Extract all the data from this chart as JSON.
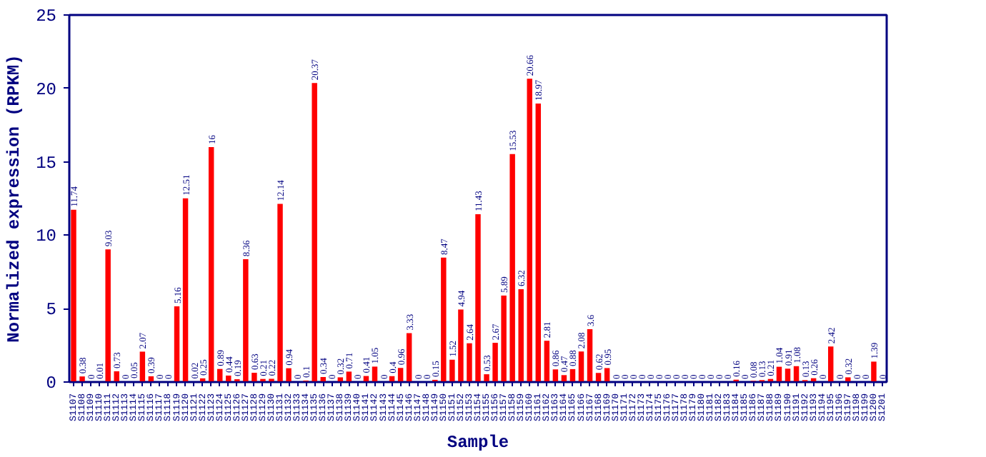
{
  "chart_data": {
    "type": "bar",
    "xlabel": "Sample",
    "ylabel": "Normalized expression (RPKM)",
    "categories": [
      "S1107",
      "S1108",
      "S1109",
      "S1110",
      "S1111",
      "S1112",
      "S1113",
      "S1114",
      "S1115",
      "S1116",
      "S1117",
      "S1118",
      "S1119",
      "S1120",
      "S1121",
      "S1122",
      "S1123",
      "S1124",
      "S1125",
      "S1126",
      "S1127",
      "S1128",
      "S1129",
      "S1130",
      "S1131",
      "S1132",
      "S1133",
      "S1134",
      "S1135",
      "S1136",
      "S1137",
      "S1138",
      "S1139",
      "S1140",
      "S1141",
      "S1142",
      "S1143",
      "S1144",
      "S1145",
      "S1146",
      "S1147",
      "S1148",
      "S1149",
      "S1150",
      "S1151",
      "S1152",
      "S1153",
      "S1154",
      "S1155",
      "S1156",
      "S1157",
      "S1158",
      "S1159",
      "S1160",
      "S1161",
      "S1162",
      "S1163",
      "S1164",
      "S1165",
      "S1166",
      "S1167",
      "S1168",
      "S1169",
      "S1170",
      "S1171",
      "S1172",
      "S1173",
      "S1174",
      "S1175",
      "S1176",
      "S1177",
      "S1178",
      "S1179",
      "S1180",
      "S1181",
      "S1182",
      "S1183",
      "S1184",
      "S1185",
      "S1186",
      "S1187",
      "S1188",
      "S1189",
      "S1190",
      "S1191",
      "S1192",
      "S1193",
      "S1194",
      "S1195",
      "S1196",
      "S1197",
      "S1198",
      "S1199",
      "S1200",
      "S1201"
    ],
    "values": [
      11.74,
      0.38,
      0,
      0.01,
      9.03,
      0.73,
      0,
      0.05,
      2.07,
      0.39,
      0,
      0,
      5.16,
      12.51,
      0.02,
      0.25,
      16,
      0.89,
      0.44,
      0.19,
      8.36,
      0.63,
      0.21,
      0.22,
      12.14,
      0.94,
      0,
      0.1,
      20.37,
      0.34,
      0,
      0.32,
      0.71,
      0,
      0.41,
      1.05,
      0,
      0.4,
      0.96,
      3.33,
      0,
      0,
      0.15,
      8.47,
      1.52,
      4.94,
      2.64,
      11.43,
      0.53,
      2.67,
      5.89,
      15.53,
      6.32,
      20.66,
      18.97,
      2.81,
      0.86,
      0.47,
      0.88,
      2.08,
      3.6,
      0.62,
      0.95,
      0,
      0,
      0,
      0,
      0,
      0,
      0,
      0,
      0,
      0,
      0,
      0,
      0,
      0,
      0.16,
      0,
      0.08,
      0.13,
      0.21,
      1.04,
      0.91,
      1.08,
      0.13,
      0.26,
      0,
      2.42,
      0,
      0.32,
      0,
      0,
      1.39,
      0
    ],
    "color": "#ff0000",
    "ylim": [
      0,
      25
    ],
    "yticks": [
      0,
      5,
      10,
      15,
      20,
      25
    ],
    "grid": false,
    "data_labels": true
  }
}
